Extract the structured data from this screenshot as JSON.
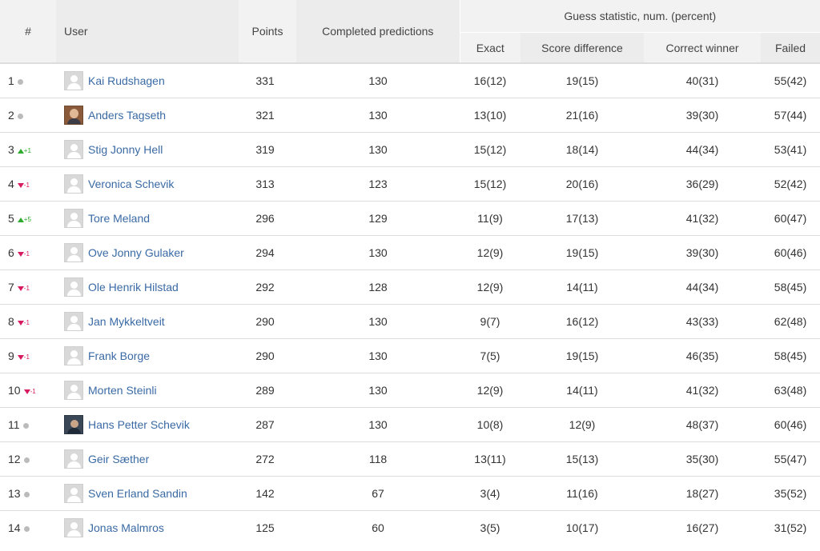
{
  "headers": {
    "rank": "#",
    "user": "User",
    "points": "Points",
    "completed": "Completed predictions",
    "guess_group": "Guess statistic, num. (percent)",
    "exact": "Exact",
    "score_difference": "Score difference",
    "correct_winner": "Correct winner",
    "failed": "Failed"
  },
  "colors": {
    "link": "#3a6aa5",
    "trend_up": "#2eaa2e",
    "trend_down": "#d81b60",
    "neutral_dot": "#bbbbbb"
  },
  "rows": [
    {
      "rank": "1",
      "trend": "same",
      "change": "",
      "avatar": "placeholder",
      "name": "Kai Rudshagen",
      "points": "331",
      "completed": "130",
      "exact": "16(12)",
      "diff": "19(15)",
      "winner": "40(31)",
      "failed": "55(42)"
    },
    {
      "rank": "2",
      "trend": "same",
      "change": "",
      "avatar": "photo1",
      "name": "Anders Tagseth",
      "points": "321",
      "completed": "130",
      "exact": "13(10)",
      "diff": "21(16)",
      "winner": "39(30)",
      "failed": "57(44)"
    },
    {
      "rank": "3",
      "trend": "up",
      "change": "+1",
      "avatar": "placeholder",
      "name": "Stig Jonny Hell",
      "points": "319",
      "completed": "130",
      "exact": "15(12)",
      "diff": "18(14)",
      "winner": "44(34)",
      "failed": "53(41)"
    },
    {
      "rank": "4",
      "trend": "down",
      "change": "-1",
      "avatar": "placeholder",
      "name": "Veronica Schevik",
      "points": "313",
      "completed": "123",
      "exact": "15(12)",
      "diff": "20(16)",
      "winner": "36(29)",
      "failed": "52(42)"
    },
    {
      "rank": "5",
      "trend": "up",
      "change": "+5",
      "avatar": "placeholder",
      "name": "Tore Meland",
      "points": "296",
      "completed": "129",
      "exact": "11(9)",
      "diff": "17(13)",
      "winner": "41(32)",
      "failed": "60(47)"
    },
    {
      "rank": "6",
      "trend": "down",
      "change": "-1",
      "avatar": "placeholder",
      "name": "Ove Jonny Gulaker",
      "points": "294",
      "completed": "130",
      "exact": "12(9)",
      "diff": "19(15)",
      "winner": "39(30)",
      "failed": "60(46)"
    },
    {
      "rank": "7",
      "trend": "down",
      "change": "-1",
      "avatar": "placeholder",
      "name": "Ole Henrik Hilstad",
      "points": "292",
      "completed": "128",
      "exact": "12(9)",
      "diff": "14(11)",
      "winner": "44(34)",
      "failed": "58(45)"
    },
    {
      "rank": "8",
      "trend": "down",
      "change": "-1",
      "avatar": "placeholder",
      "name": "Jan Mykkeltveit",
      "points": "290",
      "completed": "130",
      "exact": "9(7)",
      "diff": "16(12)",
      "winner": "43(33)",
      "failed": "62(48)"
    },
    {
      "rank": "9",
      "trend": "down",
      "change": "-1",
      "avatar": "placeholder",
      "name": "Frank Borge",
      "points": "290",
      "completed": "130",
      "exact": "7(5)",
      "diff": "19(15)",
      "winner": "46(35)",
      "failed": "58(45)"
    },
    {
      "rank": "10",
      "trend": "down",
      "change": "-1",
      "avatar": "placeholder",
      "name": "Morten Steinli",
      "points": "289",
      "completed": "130",
      "exact": "12(9)",
      "diff": "14(11)",
      "winner": "41(32)",
      "failed": "63(48)"
    },
    {
      "rank": "11",
      "trend": "same",
      "change": "",
      "avatar": "photo2",
      "name": "Hans Petter Schevik",
      "points": "287",
      "completed": "130",
      "exact": "10(8)",
      "diff": "12(9)",
      "winner": "48(37)",
      "failed": "60(46)"
    },
    {
      "rank": "12",
      "trend": "same",
      "change": "",
      "avatar": "placeholder",
      "name": "Geir Sæther",
      "points": "272",
      "completed": "118",
      "exact": "13(11)",
      "diff": "15(13)",
      "winner": "35(30)",
      "failed": "55(47)"
    },
    {
      "rank": "13",
      "trend": "same",
      "change": "",
      "avatar": "placeholder",
      "name": "Sven Erland Sandin",
      "points": "142",
      "completed": "67",
      "exact": "3(4)",
      "diff": "11(16)",
      "winner": "18(27)",
      "failed": "35(52)"
    },
    {
      "rank": "14",
      "trend": "same",
      "change": "",
      "avatar": "placeholder",
      "name": "Jonas Malmros",
      "points": "125",
      "completed": "60",
      "exact": "3(5)",
      "diff": "10(17)",
      "winner": "16(27)",
      "failed": "31(52)"
    }
  ]
}
